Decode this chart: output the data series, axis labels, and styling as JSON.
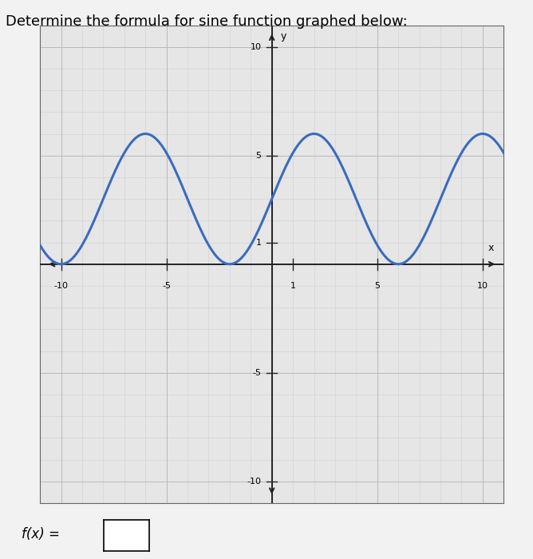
{
  "title": "Determine the formula for sine function graphed below:",
  "title_fontsize": 13,
  "amplitude": 3,
  "vertical_shift": 3,
  "period": 8,
  "phase_shift": 0,
  "xlim": [
    -11,
    11
  ],
  "ylim": [
    -11,
    11
  ],
  "x_ticks": [
    -10,
    -5,
    1,
    5,
    10
  ],
  "y_ticks": [
    -10,
    -5,
    1,
    5,
    10
  ],
  "x_tick_labels": [
    "-10",
    "-5",
    "1",
    "5",
    "10"
  ],
  "y_tick_labels": [
    "-10",
    "-5",
    "1",
    "5",
    "10"
  ],
  "curve_color": "#3a6bbf",
  "curve_linewidth": 2.2,
  "grid_minor_color": "#d0d0d0",
  "grid_major_color": "#b8b8b8",
  "axis_color": "#222222",
  "fig_bg_color": "#f2f2f2",
  "plot_bg_color": "#e6e6e6",
  "xlabel": "x",
  "ylabel": "y",
  "formula_label": "f(x) ="
}
